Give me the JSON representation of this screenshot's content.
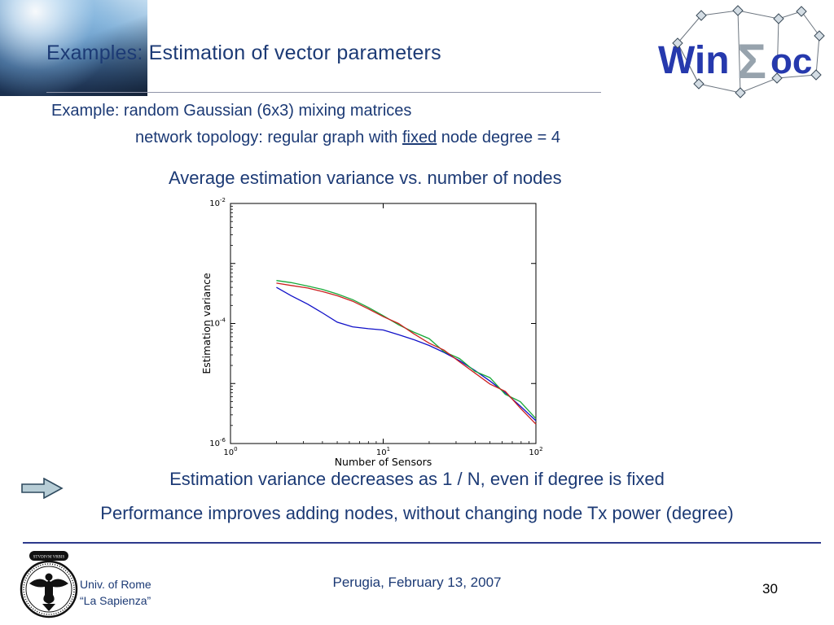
{
  "slide": {
    "title": "Examples: Estimation of vector parameters",
    "body_line1": "Example: random Gaussian (6x3) mixing matrices",
    "body_line2_pre": "network topology: regular graph with ",
    "body_line2_underlined": "fixed",
    "body_line2_post": " node degree = 4",
    "conclusion1": "Estimation variance decreases as 1 / N, even if degree is fixed",
    "conclusion2": "Performance improves adding nodes, without changing node Tx power (degree)"
  },
  "logo": {
    "win": "Win",
    "sigma": "Σ",
    "oc": "oc"
  },
  "footer": {
    "affiliation_line1": "Univ. of Rome",
    "affiliation_line2": "“La Sapienza”",
    "venue": "Perugia, February 13, 2007",
    "page_number": "30"
  },
  "icons": {
    "pointer_arrow": "block-arrow-right",
    "winsoc_network": "network-graph-nodes",
    "crest": "sapienza-eagle-crest"
  },
  "colors": {
    "text_blue": "#1c3a75",
    "logo_blue": "#2639ad",
    "logo_gray": "#97a3ad",
    "footer_line": "#2d3a8c",
    "title_rule": "#8f94a8",
    "arrow_fill": "#b7cdd6",
    "arrow_stroke": "#2f4a5e"
  },
  "chart_data": {
    "type": "line",
    "title": "Average estimation variance vs. number of nodes",
    "xlabel": "Number of Sensors",
    "ylabel": "Estimation variance",
    "x_scale": "log",
    "y_scale": "log",
    "xlim_log": [
      0,
      2
    ],
    "ylim_log": [
      -6,
      -2
    ],
    "grid": false,
    "legend": null,
    "x_ticks": [
      {
        "base": "10",
        "exp": "0"
      },
      {
        "base": "10",
        "exp": "1"
      },
      {
        "base": "10",
        "exp": "2"
      }
    ],
    "y_ticks": [
      {
        "base": "10",
        "exp": "-2"
      },
      {
        "base": "10",
        "exp": "-4"
      },
      {
        "base": "10",
        "exp": "-6"
      }
    ],
    "x": [
      2,
      2.5,
      3.2,
      4,
      5,
      6.3,
      8,
      10,
      12.6,
      15.8,
      20,
      25,
      31.6,
      39.8,
      50,
      63,
      79,
      100
    ],
    "series": [
      {
        "name": "blue",
        "color": "#1010c8",
        "values": [
          0.0004,
          0.00029,
          0.00021,
          0.00015,
          0.000105,
          8.8e-05,
          8.2e-05,
          7.8e-05,
          6.5e-05,
          5.4e-05,
          4.3e-05,
          3.3e-05,
          2.4e-05,
          1.65e-05,
          1.1e-05,
          7e-06,
          4.2e-06,
          2.4e-06
        ]
      },
      {
        "name": "green",
        "color": "#18a838",
        "values": [
          0.00052,
          0.00048,
          0.00042,
          0.00037,
          0.00031,
          0.00025,
          0.000185,
          0.000135,
          9.5e-05,
          7.2e-05,
          5.6e-05,
          3.4e-05,
          2.6e-05,
          1.6e-05,
          1.25e-05,
          6.6e-06,
          5e-06,
          2.6e-06
        ]
      },
      {
        "name": "red",
        "color": "#cc2020",
        "values": [
          0.00047,
          0.00043,
          0.00039,
          0.00034,
          0.00029,
          0.000235,
          0.000175,
          0.00013,
          0.0001,
          6.8e-05,
          4.7e-05,
          3.6e-05,
          2.3e-05,
          1.5e-05,
          9.8e-06,
          7.4e-06,
          3.9e-06,
          2.1e-06
        ]
      }
    ]
  }
}
